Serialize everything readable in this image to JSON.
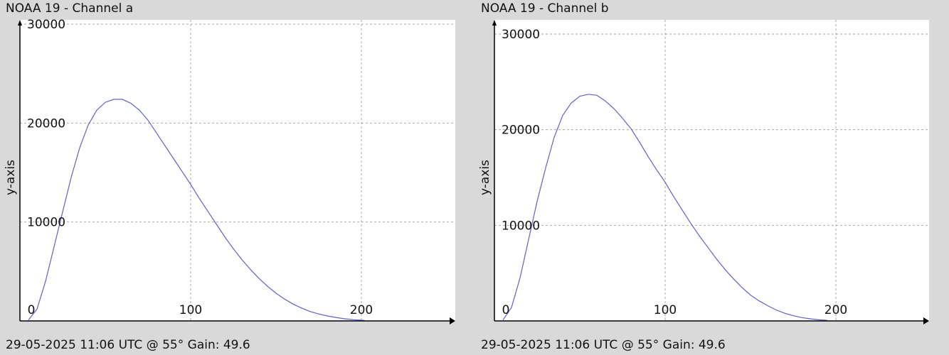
{
  "panels": [
    {
      "title": "NOAA 19 - Channel a",
      "footer": "29-05-2025 11:06 UTC @ 55° Gain: 49.6"
    },
    {
      "title": "NOAA 19 - Channel b",
      "footer": "29-05-2025 11:06 UTC @ 55° Gain: 49.6"
    }
  ],
  "colors": {
    "background": "#d9d9d9",
    "plot_area": "#ffffff",
    "line": "#6060d0",
    "grid": "#aaaaaa",
    "axis": "#000000"
  },
  "chart_data": [
    {
      "type": "line",
      "title": "NOAA 19 - Channel a",
      "xlabel": "",
      "ylabel": "y-axis",
      "xlim": [
        0,
        255
      ],
      "ylim": [
        0,
        30000
      ],
      "xticks": [
        0,
        100,
        200
      ],
      "yticks": [
        0,
        10000,
        20000,
        30000
      ],
      "xtick_labels": [
        "0",
        "100",
        "200"
      ],
      "ytick_labels": [
        "",
        "10000",
        "20000",
        "30000"
      ],
      "grid": true,
      "series": [
        {
          "x": [
            5,
            10,
            15,
            20,
            25,
            30,
            35,
            40,
            45,
            50,
            55,
            60,
            65,
            70,
            75,
            80,
            85,
            90,
            95,
            100,
            105,
            110,
            115,
            120,
            125,
            130,
            135,
            140,
            145,
            150,
            155,
            160,
            165,
            170,
            175,
            180,
            185,
            190,
            195,
            200,
            202
          ],
          "y": [
            100,
            1200,
            4000,
            7500,
            11000,
            14500,
            17500,
            19800,
            21300,
            22100,
            22400,
            22400,
            22000,
            21300,
            20300,
            19000,
            17700,
            16400,
            15100,
            13800,
            12400,
            11100,
            9800,
            8500,
            7300,
            6200,
            5200,
            4300,
            3500,
            2800,
            2200,
            1700,
            1300,
            950,
            700,
            500,
            350,
            220,
            130,
            70,
            50
          ]
        }
      ]
    },
    {
      "type": "line",
      "title": "NOAA 19 - Channel b",
      "xlabel": "",
      "ylabel": "y-axis",
      "xlim": [
        0,
        255
      ],
      "ylim": [
        0,
        30000
      ],
      "xticks": [
        0,
        100,
        200
      ],
      "yticks": [
        0,
        10000,
        20000,
        30000
      ],
      "xtick_labels": [
        "0",
        "100",
        "200"
      ],
      "ytick_labels": [
        "",
        "10000",
        "20000",
        "30000"
      ],
      "grid": true,
      "series": [
        {
          "x": [
            5,
            10,
            15,
            20,
            25,
            30,
            35,
            40,
            45,
            50,
            55,
            60,
            65,
            70,
            75,
            80,
            85,
            90,
            95,
            100,
            105,
            110,
            115,
            120,
            125,
            130,
            135,
            140,
            145,
            150,
            155,
            160,
            165,
            170,
            175,
            180,
            185,
            190,
            195
          ],
          "y": [
            100,
            1400,
            4500,
            8500,
            12500,
            16000,
            19200,
            21500,
            22800,
            23500,
            23700,
            23600,
            23000,
            22200,
            21200,
            20100,
            18700,
            17200,
            15800,
            14500,
            13000,
            11600,
            10200,
            8900,
            7700,
            6500,
            5400,
            4400,
            3500,
            2700,
            2100,
            1600,
            1150,
            800,
            550,
            350,
            220,
            120,
            60
          ]
        }
      ]
    }
  ]
}
